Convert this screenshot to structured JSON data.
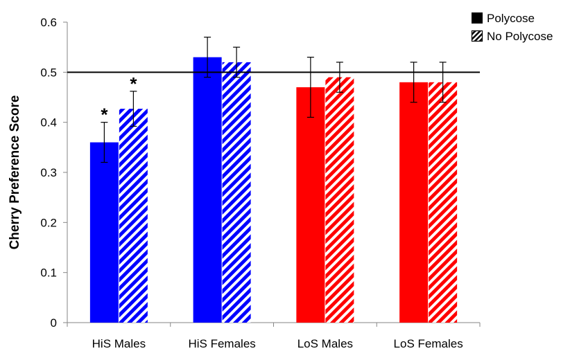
{
  "chart_data": {
    "type": "bar",
    "title": "",
    "xlabel": "",
    "ylabel": "Cherry Preference Score",
    "ylim": [
      0,
      0.6
    ],
    "yticks": [
      0,
      0.1,
      0.2,
      0.3,
      0.4,
      0.5,
      0.6
    ],
    "ytick_labels": [
      "0",
      "0.1",
      "0.2",
      "0.3",
      "0.4",
      "0.5",
      "0.6"
    ],
    "categories": [
      "HiS Males",
      "HiS Females",
      "LoS Males",
      "LoS Females"
    ],
    "category_colors": [
      "#0000ff",
      "#0000ff",
      "#ff0000",
      "#ff0000"
    ],
    "series": [
      {
        "name": "Polycose",
        "fill": "solid",
        "values": [
          0.36,
          0.53,
          0.47,
          0.48
        ],
        "errors": [
          0.04,
          0.04,
          0.06,
          0.04
        ],
        "significance": [
          "*",
          "",
          "",
          ""
        ]
      },
      {
        "name": "No Polycose",
        "fill": "striped",
        "values": [
          0.427,
          0.52,
          0.49,
          0.48
        ],
        "errors": [
          0.035,
          0.03,
          0.03,
          0.04
        ],
        "significance": [
          "*",
          "",
          "",
          ""
        ]
      }
    ],
    "reference_line": 0.5,
    "legend": {
      "position": "top-right"
    },
    "grid": false
  }
}
